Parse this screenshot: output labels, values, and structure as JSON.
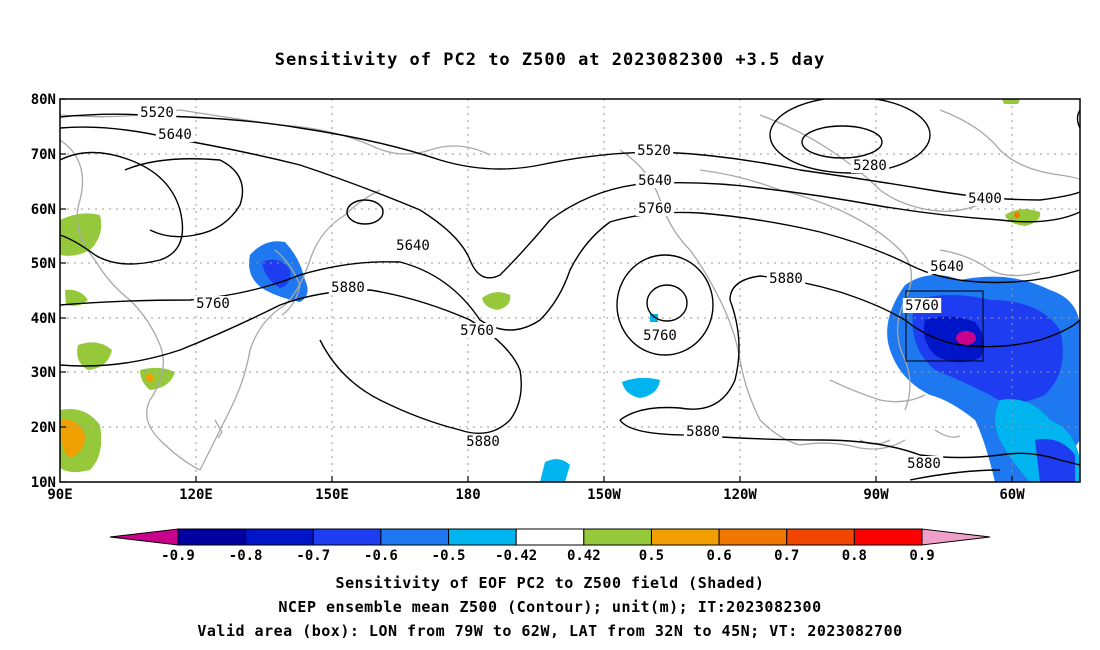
{
  "title": "Sensitivity of PC2 to Z500 at 2023082300 +3.5 day",
  "axes": {
    "lat_ticks": [
      "80N",
      "70N",
      "60N",
      "50N",
      "40N",
      "30N",
      "20N",
      "10N"
    ],
    "lon_ticks": [
      "90E",
      "120E",
      "150E",
      "180",
      "150W",
      "120W",
      "90W",
      "60W"
    ]
  },
  "contour_labels": [
    {
      "text": "5520"
    },
    {
      "text": "5640"
    },
    {
      "text": "5520"
    },
    {
      "text": "5280"
    },
    {
      "text": "5400"
    },
    {
      "text": "5640"
    },
    {
      "text": "5760"
    },
    {
      "text": "5640"
    },
    {
      "text": "5640"
    },
    {
      "text": "5760"
    },
    {
      "text": "5880"
    },
    {
      "text": "5760"
    },
    {
      "text": "5760"
    },
    {
      "text": "5880"
    },
    {
      "text": "5760"
    },
    {
      "text": "5880"
    },
    {
      "text": "5880"
    },
    {
      "text": "5880"
    }
  ],
  "colorbar": {
    "labels": [
      "-0.9",
      "-0.8",
      "-0.7",
      "-0.6",
      "-0.5",
      "-0.42",
      "0.42",
      "0.5",
      "0.6",
      "0.7",
      "0.8",
      "0.9"
    ],
    "colors": [
      "#c8008c",
      "#0000a0",
      "#0014c8",
      "#1e3cf0",
      "#1e78f0",
      "#00b4f0",
      "#ffffff",
      "#96c83c",
      "#f0a000",
      "#f07800",
      "#f04600",
      "#ff0000",
      "#f0a0c8"
    ]
  },
  "valid_box": {
    "lon_min": -79,
    "lon_max": -62,
    "lat_min": 32,
    "lat_max": 45
  },
  "captions": [
    "Sensitivity of EOF PC2 to Z500 field (Shaded)",
    "NCEP ensemble mean Z500 (Contour); unit(m); IT:2023082300",
    "Valid area (box): LON from 79W to 62W, LAT from 32N to 45N; VT: 2023082700"
  ]
}
